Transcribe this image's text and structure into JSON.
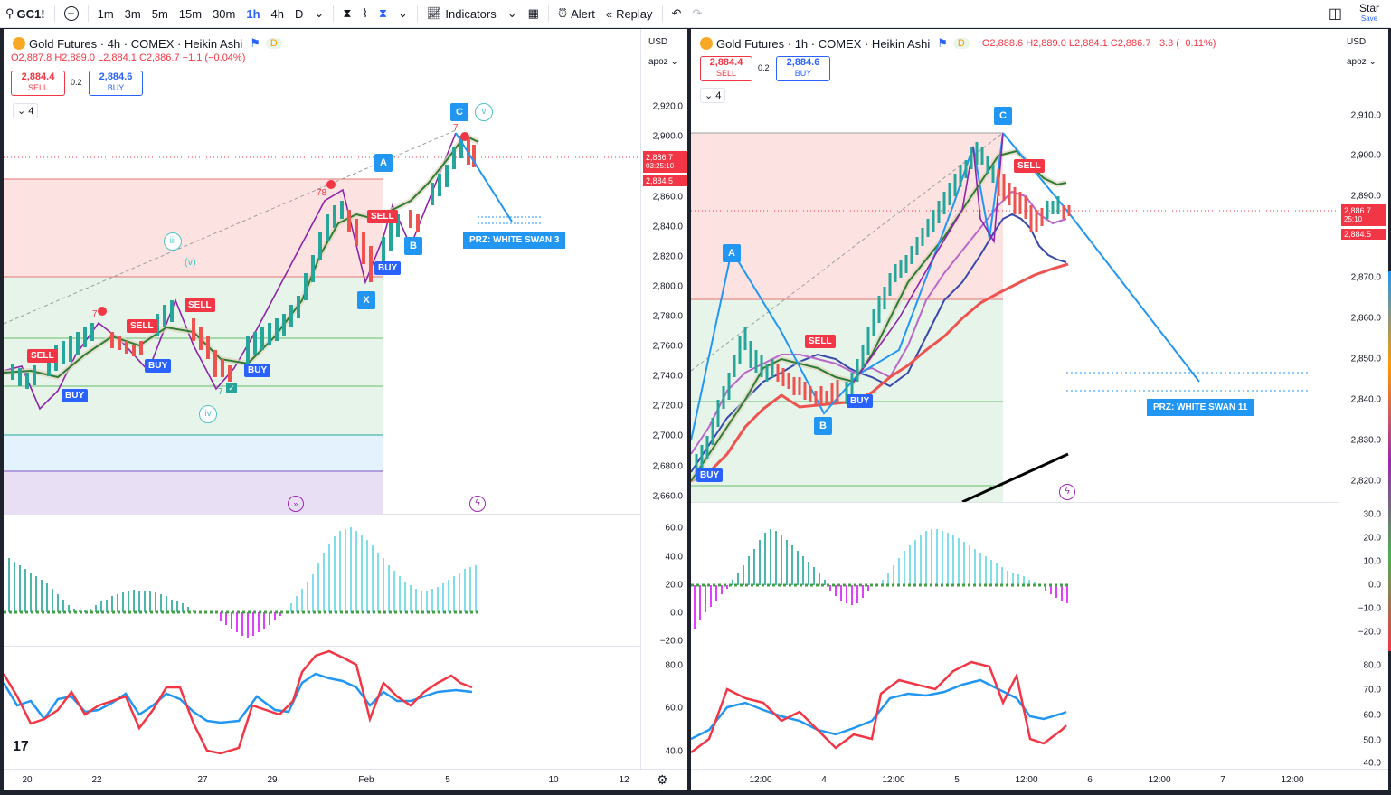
{
  "toolbar": {
    "symbol": "GC1!",
    "intervals": [
      "1m",
      "3m",
      "5m",
      "15m",
      "30m",
      "1h",
      "4h",
      "D"
    ],
    "active_interval": "1h",
    "indicators_label": "Indicators",
    "alert_label": "Alert",
    "replay_label": "Replay",
    "star_label": "Star",
    "save_label": "Save"
  },
  "left_chart": {
    "title": "Gold Futures · 4h · COMEX · Heikin Ashi",
    "badge": "D",
    "ohlc": {
      "o": "O2,887.8",
      "h": "H2,889.0",
      "l": "L2,884.1",
      "c": "C2,886.7",
      "chg": "−1.1 (−0.04%)"
    },
    "sell_price": "2,884.4",
    "sell_label": "SELL",
    "spread": "0.2",
    "buy_price": "2,884.6",
    "buy_label": "BUY",
    "collapse": "4",
    "currency": "USD",
    "scale": "apoz",
    "price_ticks": [
      "2,920.0",
      "2,900.0",
      "2,880.0",
      "2,860.0",
      "2,840.0",
      "2,820.0",
      "2,800.0",
      "2,780.0",
      "2,760.0",
      "2,740.0",
      "2,720.0",
      "2,700.0",
      "2,680.0",
      "2,660.0"
    ],
    "last_price": "2,886.7",
    "countdown": "03:25:10",
    "bid_price": "2,884.5",
    "macd_ticks": [
      "60.0",
      "40.0",
      "20.0",
      "0.0",
      "−20.0"
    ],
    "rsi_ticks": [
      "80.0",
      "60.0",
      "40.0"
    ],
    "time_ticks": [
      "20",
      "22",
      "27",
      "29",
      "Feb",
      "5",
      "10",
      "12"
    ],
    "points": {
      "a": "A",
      "b": "B",
      "c": "C",
      "x": "X"
    },
    "prz": "PRZ: WHITE SWAN 3",
    "waves": {
      "iii": "iii",
      "v_paren": "(v)",
      "iv": "iv",
      "v": "v"
    },
    "signals": [
      "SELL",
      "SELL",
      "SELL",
      "SELL",
      "BUY",
      "BUY",
      "BUY",
      "BUY"
    ],
    "markers": [
      "7",
      "78",
      "7",
      "7"
    ]
  },
  "right_chart": {
    "title": "Gold Futures · 1h · COMEX · Heikin Ashi",
    "badge": "D",
    "ohlc": {
      "o": "O2,888.6",
      "h": "H2,889.0",
      "l": "L2,884.1",
      "c": "C2,886.7",
      "chg": "−3.3 (−0.11%)"
    },
    "sell_price": "2,884.4",
    "sell_label": "SELL",
    "spread": "0.2",
    "buy_price": "2,884.6",
    "buy_label": "BUY",
    "collapse": "4",
    "currency": "USD",
    "scale": "apoz",
    "price_ticks": [
      "2,910.0",
      "2,900.0",
      "2,890.0",
      "2,880.0",
      "2,870.0",
      "2,860.0",
      "2,850.0",
      "2,840.0",
      "2,830.0",
      "2,820.0"
    ],
    "last_price": "2,886.7",
    "countdown": "25:10",
    "bid_price": "2,884.5",
    "macd_ticks": [
      "30.0",
      "20.0",
      "10.0",
      "0.0",
      "−10.0",
      "−20.0"
    ],
    "rsi_ticks": [
      "80.0",
      "70.0",
      "60.0",
      "50.0",
      "40.0"
    ],
    "time_ticks": [
      "12:00",
      "4",
      "12:00",
      "5",
      "12:00",
      "6",
      "12:00",
      "7",
      "12:00"
    ],
    "points": {
      "a": "A",
      "b": "B",
      "c": "C"
    },
    "prz": "PRZ: WHITE SWAN 11",
    "signals": [
      "SELL",
      "SELL",
      "BUY",
      "BUY"
    ]
  },
  "colors": {
    "sell": "#f23645",
    "buy": "#2962ff",
    "pattern": "#2196f3",
    "teal": "#4fc3c7",
    "purple": "#9c27b0"
  }
}
